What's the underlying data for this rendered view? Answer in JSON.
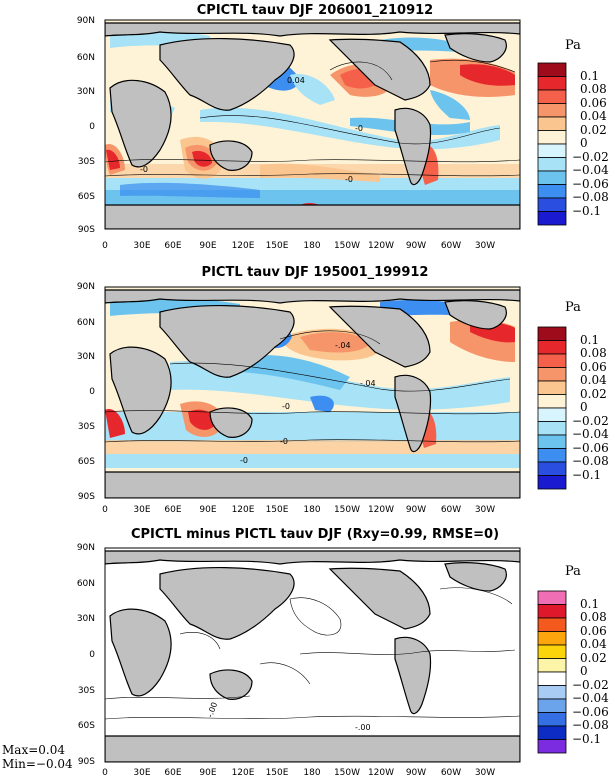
{
  "panels": [
    {
      "title": "CPICTL tauv DJF 206001_210912",
      "unit": "Pa",
      "colorbar_ticks": [
        "0.1",
        "0.08",
        "0.06",
        "0.04",
        "0.02",
        "0",
        "−0.02",
        "−0.04",
        "−0.06",
        "−0.08",
        "−0.1"
      ],
      "colors": [
        "#9e0b1a",
        "#e6282d",
        "#f4604a",
        "#f7956a",
        "#fbc58f",
        "#fef3d6",
        "#d8f4fc",
        "#a7e2f6",
        "#6cc4ee",
        "#3c8ff0",
        "#2a4fe0",
        "#1a1ad0"
      ],
      "contour_labels": [
        "0.04",
        "-0",
        "-0",
        "-0"
      ]
    },
    {
      "title": "PICTL tauv DJF 195001_199912",
      "unit": "Pa",
      "colorbar_ticks": [
        "0.1",
        "0.08",
        "0.06",
        "0.04",
        "0.02",
        "0",
        "−0.02",
        "−0.04",
        "−0.06",
        "−0.08",
        "−0.1"
      ],
      "colors": [
        "#9e0b1a",
        "#e6282d",
        "#f4604a",
        "#f7956a",
        "#fbc58f",
        "#fef3d6",
        "#d8f4fc",
        "#a7e2f6",
        "#6cc4ee",
        "#3c8ff0",
        "#2a4fe0",
        "#1a1ad0"
      ],
      "contour_labels": [
        "-.04",
        "-.04",
        "-0",
        "-0",
        "-0"
      ]
    },
    {
      "title": "CPICTL minus PICTL tauv DJF (Rxy=0.99, RMSE=0)",
      "unit": "Pa",
      "colorbar_ticks": [
        "0.1",
        "0.08",
        "0.06",
        "0.04",
        "0.02",
        "0",
        "−0.02",
        "−0.04",
        "−0.06",
        "−0.08",
        "−0.1"
      ],
      "colors": [
        "#f06eb4",
        "#e0182c",
        "#f45a1e",
        "#fca50c",
        "#fcd40c",
        "#fcf4a6",
        "#ffffff",
        "#a8ccf4",
        "#6ca4ec",
        "#3470e4",
        "#0c2cc4",
        "#7c2ce0"
      ],
      "contour_labels": [
        "-.00",
        "-.00"
      ],
      "max_label": "Max=0.04",
      "min_label": "Min=−0.04"
    }
  ],
  "lat_ticks": [
    "90N",
    "60N",
    "30N",
    "0",
    "30S",
    "60S",
    "90S"
  ],
  "lon_ticks": [
    "0",
    "30E",
    "60E",
    "90E",
    "120E",
    "150E",
    "180",
    "150W",
    "120W",
    "90W",
    "60W",
    "30W"
  ],
  "land_color": "#c0c0c0"
}
